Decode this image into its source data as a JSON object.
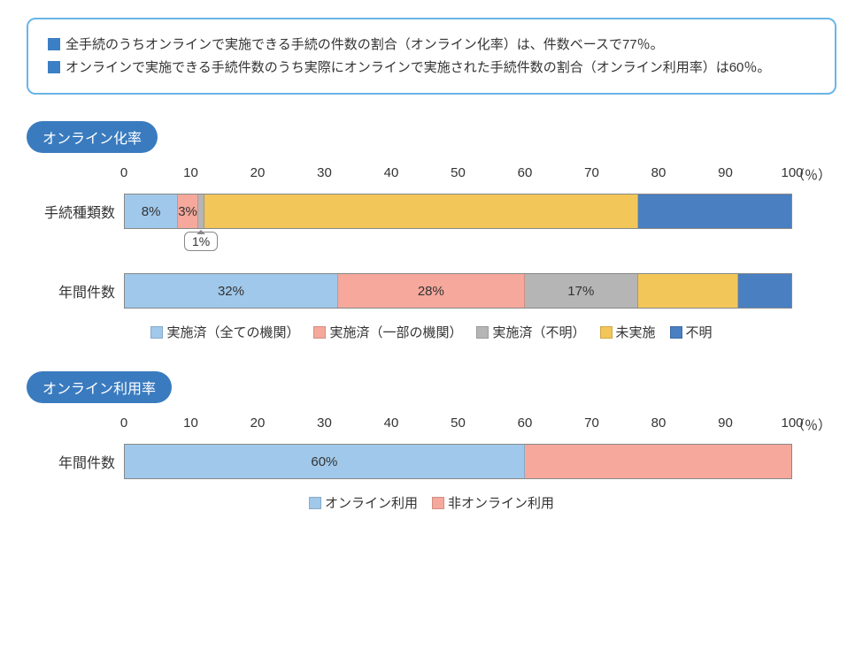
{
  "info": {
    "bullet1": "全手続のうちオンラインで実施できる手続の件数の割合（オンライン化率）は、件数ベースで77％。",
    "bullet2": "オンラインで実施できる手続件数のうち実際にオンラインで実施された手続件数の割合（オンライン利用率）は60％。",
    "bullet_color": "#3b7fc4"
  },
  "axis": {
    "ticks": [
      0,
      10,
      20,
      30,
      40,
      50,
      60,
      70,
      80,
      90,
      100
    ],
    "unit": "（％）"
  },
  "colors": {
    "done_all": "#a0c8ea",
    "done_part": "#f5a89b",
    "done_unknown": "#b5b5b5",
    "not_done": "#f2c658",
    "unknown": "#4a7fc1",
    "online_use": "#a0c8ea",
    "non_online": "#f5a89b",
    "border": "#888888",
    "title_bg": "#3a7bbf"
  },
  "chart1": {
    "title": "オンライン化率",
    "legend": [
      {
        "label": "実施済（全ての機関）",
        "color": "#a0c8ea"
      },
      {
        "label": "実施済（一部の機関）",
        "color": "#f5a89b"
      },
      {
        "label": "実施済（不明）",
        "color": "#b5b5b5"
      },
      {
        "label": "未実施",
        "color": "#f2c658"
      },
      {
        "label": "不明",
        "color": "#4a7fc1"
      }
    ],
    "rows": [
      {
        "label": "手続種類数",
        "segments": [
          {
            "value": 8,
            "text": "8%",
            "color": "#a0c8ea"
          },
          {
            "value": 3,
            "text": "3%",
            "color": "#f5a89b"
          },
          {
            "value": 1,
            "text": "",
            "callout": "1%",
            "color": "#b5b5b5"
          },
          {
            "value": 65,
            "text": "",
            "color": "#f2c658"
          },
          {
            "value": 23,
            "text": "",
            "color": "#4a7fc1"
          }
        ]
      },
      {
        "label": "年間件数",
        "segments": [
          {
            "value": 32,
            "text": "32%",
            "color": "#a0c8ea"
          },
          {
            "value": 28,
            "text": "28%",
            "color": "#f5a89b"
          },
          {
            "value": 17,
            "text": "17%",
            "color": "#b5b5b5"
          },
          {
            "value": 15,
            "text": "",
            "color": "#f2c658"
          },
          {
            "value": 8,
            "text": "",
            "color": "#4a7fc1"
          }
        ]
      }
    ]
  },
  "chart2": {
    "title": "オンライン利用率",
    "legend": [
      {
        "label": "オンライン利用",
        "color": "#a0c8ea"
      },
      {
        "label": "非オンライン利用",
        "color": "#f5a89b"
      }
    ],
    "rows": [
      {
        "label": "年間件数",
        "segments": [
          {
            "value": 60,
            "text": "60%",
            "color": "#a0c8ea"
          },
          {
            "value": 40,
            "text": "",
            "color": "#f5a89b"
          }
        ]
      }
    ]
  }
}
